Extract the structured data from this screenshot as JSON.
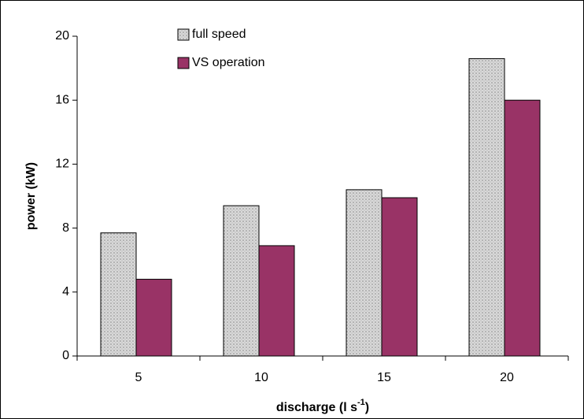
{
  "chart_data": {
    "type": "bar",
    "categories": [
      "5",
      "10",
      "15",
      "20"
    ],
    "series": [
      {
        "name": "full speed",
        "color": "#d9d9d9",
        "pattern": "dotted",
        "values": [
          7.7,
          9.4,
          10.4,
          18.6
        ]
      },
      {
        "name": "VS operation",
        "color": "#993366",
        "values": [
          4.8,
          6.9,
          9.9,
          16.0
        ]
      }
    ],
    "x_label": {
      "text": "discharge (l s",
      "superscript": "-1",
      "suffix": ")"
    },
    "y_label": "power (kW)",
    "ylim": [
      0,
      20
    ],
    "yticks": [
      0,
      4,
      8,
      12,
      16,
      20
    ],
    "grid": false,
    "legend": "top"
  }
}
